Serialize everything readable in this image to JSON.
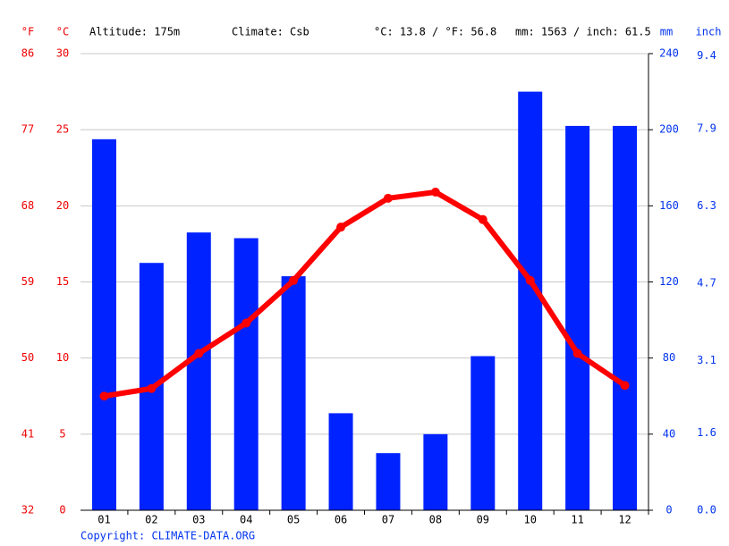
{
  "chart_data": {
    "type": "bar",
    "header": [
      "Altitude: 175m",
      "Climate: Csb",
      "°C: 13.8 / °F: 56.8",
      "mm: 1563 / inch: 61.5"
    ],
    "y_label": "°C",
    "f_label": "°F",
    "y2_label": "mm",
    "inch_label": "inch",
    "copyright": "Copyright: CLIMATE-DATA.ORG",
    "categories": [
      "01",
      "02",
      "03",
      "04",
      "05",
      "06",
      "07",
      "08",
      "09",
      "10",
      "11",
      "12"
    ],
    "series": [
      {
        "type": "bar",
        "axis": "y2",
        "color": "#0022ff",
        "values": [
          195,
          130,
          146,
          143,
          123,
          51,
          30,
          40,
          81,
          220,
          202,
          202
        ]
      },
      {
        "type": "line",
        "color": "#ff0000",
        "values": [
          7.5,
          8.0,
          10.3,
          12.3,
          15.1,
          18.6,
          20.5,
          20.9,
          19.1,
          15.1,
          10.3,
          8.2
        ]
      }
    ],
    "ylim": [
      0,
      30
    ],
    "yticks": [
      0,
      5,
      10,
      15,
      20,
      25,
      30
    ],
    "flim": [
      32,
      86
    ],
    "fticks": [
      32,
      41,
      50,
      59,
      68,
      77,
      86
    ],
    "y2lim": [
      0,
      240
    ],
    "y2ticks": [
      0,
      40,
      80,
      120,
      160,
      200,
      240
    ],
    "inchlim": [
      0,
      9.449
    ],
    "inchticks": [
      {
        "value": 0,
        "label": "0.0"
      },
      1.6,
      3.1,
      4.7,
      6.3,
      7.9,
      9.4
    ],
    "grid": true
  }
}
